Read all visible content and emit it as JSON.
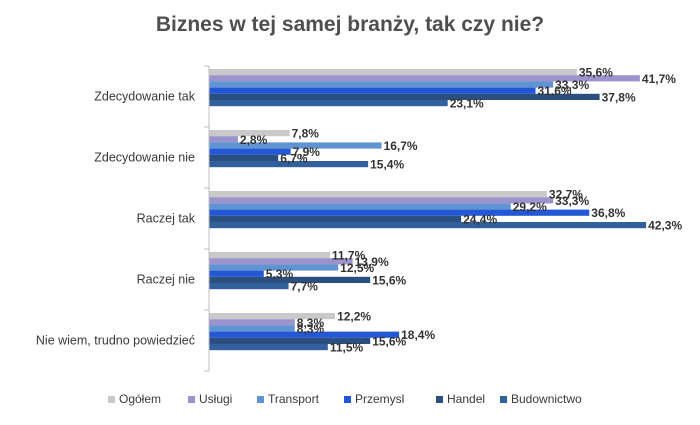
{
  "chart_data": {
    "type": "bar",
    "orientation": "horizontal",
    "title": "Biznes w tej samej branży, tak czy nie?",
    "categories": [
      "Zdecydowanie tak",
      "Zdecydowanie nie",
      "Raczej tak",
      "Raczej nie",
      "Nie wiem, trudno powiedzieć"
    ],
    "series": [
      {
        "name": "Ogółem",
        "color": "#c9c9c9",
        "values": [
          35.6,
          7.8,
          32.7,
          11.7,
          12.2
        ],
        "labels": [
          "35,6%",
          "7,8%",
          "32,7%",
          "11,7%",
          "12,2%"
        ]
      },
      {
        "name": "Usługi",
        "color": "#9b94cc",
        "values": [
          41.7,
          2.8,
          33.3,
          13.9,
          8.3
        ],
        "labels": [
          "41,7%",
          "2,8%",
          "33,3%",
          "13,9%",
          "8,3%"
        ]
      },
      {
        "name": "Transport",
        "color": "#5f93d2",
        "values": [
          33.3,
          16.7,
          29.2,
          12.5,
          8.3
        ],
        "labels": [
          "33,3%",
          "16,7%",
          "29,2%",
          "12,5%",
          "8,3%"
        ]
      },
      {
        "name": "Przemysł",
        "color": "#2457d6",
        "values": [
          31.6,
          7.9,
          36.8,
          5.3,
          18.4
        ],
        "labels": [
          "31,6%",
          "7,9%",
          "36,8%",
          "5,3%",
          "18,4%"
        ]
      },
      {
        "name": "Handel",
        "color": "#2b4f7e",
        "values": [
          37.8,
          6.7,
          24.4,
          15.6,
          15.6
        ],
        "labels": [
          "37,8%",
          "6,7%",
          "24,4%",
          "15,6%",
          "15,6%"
        ]
      },
      {
        "name": "Budownictwo",
        "color": "#31609c",
        "values": [
          23.1,
          15.4,
          42.3,
          7.7,
          11.5
        ],
        "labels": [
          "23,1%",
          "15,4%",
          "42,3%",
          "7,7%",
          "11,5%"
        ]
      }
    ],
    "legend_labels": [
      "Ogółem",
      "Usługi",
      "Transport",
      "Przemysl",
      "Handel",
      "Budownictwo"
    ],
    "xlim": [
      0,
      45
    ],
    "grid": false,
    "legend_position": "bottom"
  }
}
